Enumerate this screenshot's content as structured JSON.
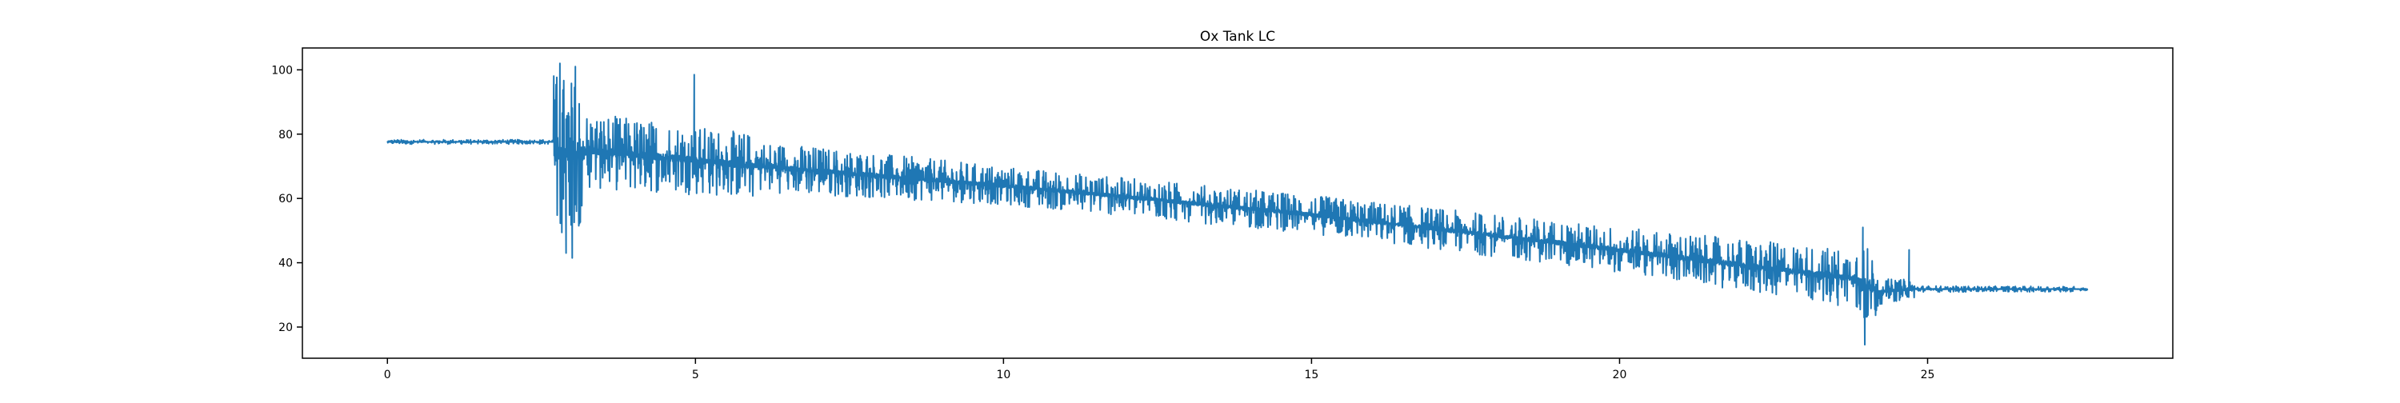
{
  "chart_data": {
    "type": "line",
    "title": "Ox Tank LC",
    "xlabel": "",
    "ylabel": "",
    "xlim": [
      -1.38,
      28.98
    ],
    "ylim": [
      10.3,
      106.8
    ],
    "xticks": [
      0,
      5,
      10,
      15,
      20,
      25
    ],
    "yticks": [
      20,
      40,
      60,
      80,
      100
    ],
    "grid": false,
    "legend": "none",
    "series": [
      {
        "color": "#1f77b4",
        "segments": [
          {
            "x0": 0.0,
            "x1": 2.7,
            "center0": 77.6,
            "center1": 77.6,
            "amp0": 0.7,
            "amp1": 0.7
          },
          {
            "x0": 2.7,
            "x1": 3.2,
            "center0": 74.0,
            "center1": 74.0,
            "amp0": 26.0,
            "amp1": 22.0
          },
          {
            "x0": 3.2,
            "x1": 6.0,
            "center0": 75.0,
            "center1": 70.0,
            "amp0": 12.0,
            "amp1": 10.0
          },
          {
            "x0": 6.0,
            "x1": 10.0,
            "center0": 70.0,
            "center1": 64.0,
            "amp0": 8.0,
            "amp1": 6.0
          },
          {
            "x0": 10.0,
            "x1": 15.0,
            "center0": 64.0,
            "center1": 55.0,
            "amp0": 6.0,
            "amp1": 6.0
          },
          {
            "x0": 15.0,
            "x1": 20.0,
            "center0": 55.0,
            "center1": 44.0,
            "amp0": 6.0,
            "amp1": 7.0
          },
          {
            "x0": 20.0,
            "x1": 23.8,
            "center0": 44.0,
            "center1": 35.0,
            "amp0": 7.0,
            "amp1": 9.0
          },
          {
            "x0": 23.8,
            "x1": 24.2,
            "center0": 35.0,
            "center1": 31.0,
            "amp0": 15.0,
            "amp1": 10.0
          },
          {
            "x0": 24.2,
            "x1": 24.8,
            "center0": 31.0,
            "center1": 31.8,
            "amp0": 4.0,
            "amp1": 3.0
          },
          {
            "x0": 24.8,
            "x1": 27.6,
            "center0": 31.8,
            "center1": 31.8,
            "amp0": 1.0,
            "amp1": 0.8
          }
        ],
        "spikes": [
          {
            "x": 2.8,
            "y": 102.0
          },
          {
            "x": 2.9,
            "y": 43.0
          },
          {
            "x": 3.0,
            "y": 41.5
          },
          {
            "x": 3.05,
            "y": 101.0
          },
          {
            "x": 4.98,
            "y": 98.5
          },
          {
            "x": 23.95,
            "y": 51.0
          },
          {
            "x": 23.98,
            "y": 14.5
          },
          {
            "x": 24.7,
            "y": 44.0
          }
        ]
      }
    ]
  }
}
